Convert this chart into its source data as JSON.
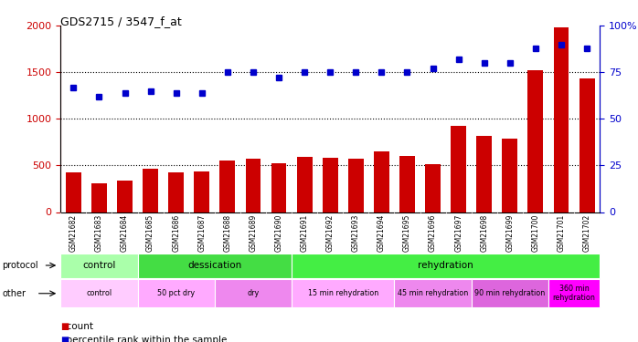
{
  "title": "GDS2715 / 3547_f_at",
  "samples": [
    "GSM21682",
    "GSM21683",
    "GSM21684",
    "GSM21685",
    "GSM21686",
    "GSM21687",
    "GSM21688",
    "GSM21689",
    "GSM21690",
    "GSM21691",
    "GSM21692",
    "GSM21693",
    "GSM21694",
    "GSM21695",
    "GSM21696",
    "GSM21697",
    "GSM21698",
    "GSM21699",
    "GSM21700",
    "GSM21701",
    "GSM21702"
  ],
  "bar_values": [
    430,
    310,
    340,
    460,
    430,
    440,
    550,
    570,
    520,
    590,
    580,
    570,
    650,
    600,
    510,
    920,
    820,
    790,
    1520,
    1980,
    1430
  ],
  "dot_values": [
    67,
    62,
    64,
    65,
    64,
    64,
    75,
    75,
    72,
    75,
    75,
    75,
    75,
    75,
    77,
    82,
    80,
    80,
    88,
    90,
    88
  ],
  "bar_color": "#cc0000",
  "dot_color": "#0000cc",
  "ylim_left": [
    0,
    2000
  ],
  "ylim_right": [
    0,
    100
  ],
  "yticks_left": [
    0,
    500,
    1000,
    1500,
    2000
  ],
  "yticks_right": [
    0,
    25,
    50,
    75,
    100
  ],
  "protocol_row": [
    {
      "label": "control",
      "start": 0,
      "end": 3,
      "color": "#aaffaa"
    },
    {
      "label": "dessication",
      "start": 3,
      "end": 9,
      "color": "#44dd44"
    },
    {
      "label": "rehydration",
      "start": 9,
      "end": 21,
      "color": "#44ee44"
    }
  ],
  "other_row": [
    {
      "label": "control",
      "start": 0,
      "end": 3,
      "color": "#ffccff"
    },
    {
      "label": "50 pct dry",
      "start": 3,
      "end": 6,
      "color": "#ffaaff"
    },
    {
      "label": "dry",
      "start": 6,
      "end": 9,
      "color": "#ee88ee"
    },
    {
      "label": "15 min rehydration",
      "start": 9,
      "end": 13,
      "color": "#ffaaff"
    },
    {
      "label": "45 min rehydration",
      "start": 13,
      "end": 16,
      "color": "#ee88ee"
    },
    {
      "label": "90 min rehydration",
      "start": 16,
      "end": 19,
      "color": "#dd66dd"
    },
    {
      "label": "360 min\nrehydration",
      "start": 19,
      "end": 21,
      "color": "#ff00ff"
    }
  ]
}
